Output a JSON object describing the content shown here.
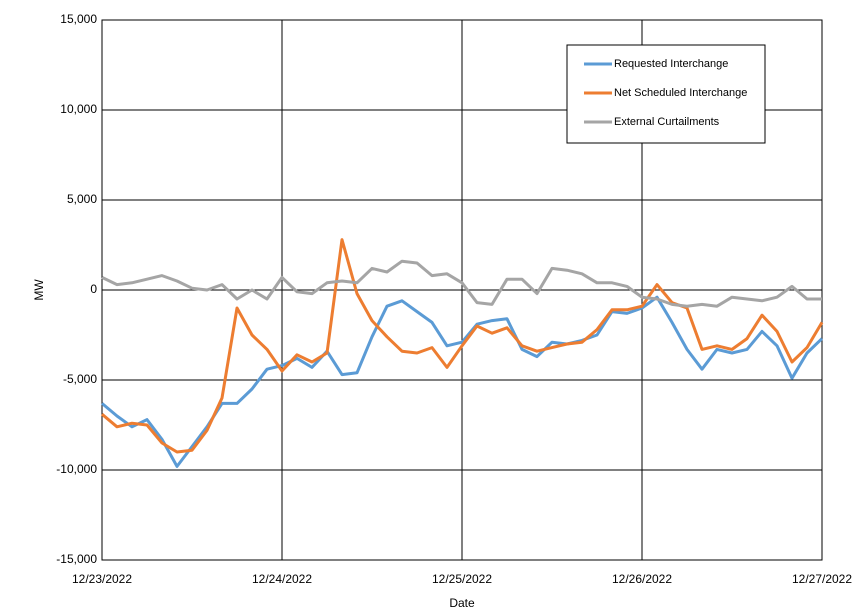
{
  "chart_data": {
    "type": "line",
    "x_label": "Date",
    "y_label": "MW",
    "x": [
      0,
      2,
      4,
      6,
      8,
      10,
      12,
      14,
      16,
      18,
      20,
      22,
      24,
      26,
      28,
      30,
      32,
      34,
      36,
      38,
      40,
      42,
      44,
      46,
      48,
      50,
      52,
      54,
      56,
      58,
      60,
      62,
      64,
      66,
      68,
      70,
      72,
      74,
      76,
      78,
      80,
      82,
      84,
      86,
      88,
      90,
      92,
      94,
      96
    ],
    "xlim": [
      0,
      96
    ],
    "xticks": [
      {
        "value": 0,
        "label": "12/23/2022"
      },
      {
        "value": 24,
        "label": "12/24/2022"
      },
      {
        "value": 48,
        "label": "12/25/2022"
      },
      {
        "value": 72,
        "label": "12/26/2022"
      },
      {
        "value": 96,
        "label": "12/27/2022"
      }
    ],
    "ylim": [
      -15000,
      15000
    ],
    "yticks": [
      {
        "value": -15000,
        "label": "-15,000"
      },
      {
        "value": -10000,
        "label": "-10,000"
      },
      {
        "value": -5000,
        "label": "-5,000"
      },
      0,
      {
        "value": 5000,
        "label": "5,000"
      },
      {
        "value": 10000,
        "label": "10,000"
      },
      {
        "value": 15000,
        "label": "15,000"
      }
    ],
    "grid": true,
    "legend": "upper right",
    "series": [
      {
        "name": "Requested Interchange",
        "color": "#5b9bd5",
        "values": [
          -6300,
          -7000,
          -7600,
          -7200,
          -8300,
          -9800,
          -8700,
          -7600,
          -6300,
          -6300,
          -5500,
          -4400,
          -4200,
          -3800,
          -4300,
          -3400,
          -4700,
          -4600,
          -2600,
          -900,
          -600,
          -1200,
          -1800,
          -3100,
          -2900,
          -1900,
          -1700,
          -1600,
          -3300,
          -3700,
          -2900,
          -3000,
          -2800,
          -2500,
          -1200,
          -1300,
          -1000,
          -400,
          -1800,
          -3300,
          -4400,
          -3300,
          -3500,
          -3300,
          -2300,
          -3100,
          -4900,
          -3500,
          -2700
        ]
      },
      {
        "name": "Net Scheduled Interchange",
        "color": "#ed7d31",
        "values": [
          -6900,
          -7600,
          -7400,
          -7500,
          -8500,
          -9000,
          -8900,
          -7800,
          -6000,
          -1000,
          -2500,
          -3300,
          -4500,
          -3600,
          -4000,
          -3500,
          2800,
          -200,
          -1700,
          -2600,
          -3400,
          -3500,
          -3200,
          -4300,
          -3100,
          -2000,
          -2400,
          -2100,
          -3100,
          -3400,
          -3200,
          -3000,
          -2900,
          -2200,
          -1100,
          -1100,
          -900,
          300,
          -700,
          -1000,
          -3300,
          -3100,
          -3300,
          -2700,
          -1400,
          -2300,
          -4000,
          -3200,
          -1800
        ]
      },
      {
        "name": "External Curtailments",
        "color": "#a5a5a5",
        "values": [
          700,
          300,
          400,
          600,
          800,
          500,
          100,
          0,
          300,
          -500,
          0,
          -500,
          700,
          -100,
          -200,
          400,
          500,
          400,
          1200,
          1000,
          1600,
          1500,
          800,
          900,
          400,
          -700,
          -800,
          600,
          600,
          -200,
          1200,
          1100,
          900,
          400,
          400,
          200,
          -400,
          -500,
          -800,
          -900,
          -800,
          -900,
          -400,
          -500,
          -600,
          -400,
          200,
          -500,
          -500
        ]
      }
    ]
  }
}
